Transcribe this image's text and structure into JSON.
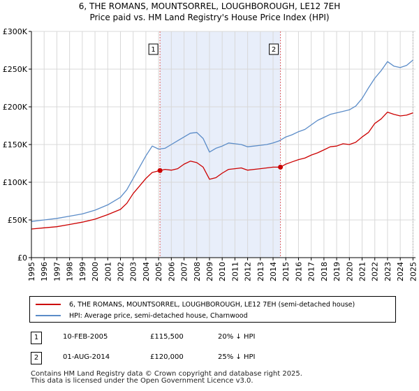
{
  "header": {
    "title_line1": "6, THE ROMANS, MOUNTSORREL, LOUGHBOROUGH, LE12 7EH",
    "title_line2": "Price paid vs. HM Land Registry's House Price Index (HPI)"
  },
  "chart_data": {
    "type": "line",
    "title": "6, THE ROMANS, MOUNTSORREL, LOUGHBOROUGH, LE12 7EH — Price paid vs. HM Land Registry's House Price Index (HPI)",
    "xlabel": "",
    "ylabel": "",
    "xlim": [
      1995,
      2025.2
    ],
    "ylim": [
      0,
      300000
    ],
    "x_ticks": [
      1995,
      1996,
      1997,
      1998,
      1999,
      2000,
      2001,
      2002,
      2003,
      2004,
      2005,
      2006,
      2007,
      2008,
      2009,
      2010,
      2011,
      2012,
      2013,
      2014,
      2015,
      2016,
      2017,
      2018,
      2019,
      2020,
      2021,
      2022,
      2023,
      2024,
      2025
    ],
    "y_ticks": [
      {
        "value": 0,
        "label": "£0"
      },
      {
        "value": 50000,
        "label": "£50K"
      },
      {
        "value": 100000,
        "label": "£100K"
      },
      {
        "value": 150000,
        "label": "£150K"
      },
      {
        "value": 200000,
        "label": "£200K"
      },
      {
        "value": 250000,
        "label": "£250K"
      },
      {
        "value": 300000,
        "label": "£300K"
      }
    ],
    "grid": true,
    "shaded_region": [
      2005.11,
      2014.58
    ],
    "series": [
      {
        "name": "6, THE ROMANS, MOUNTSORREL, LOUGHBOROUGH, LE12 7EH (semi-detached house)",
        "color": "#cc0000",
        "x": [
          1995,
          1996,
          1997,
          1998,
          1999,
          2000,
          2001,
          2002,
          2002.5,
          2003,
          2003.5,
          2004,
          2004.5,
          2005.11,
          2005.5,
          2006,
          2006.5,
          2007,
          2007.5,
          2008,
          2008.5,
          2009,
          2009.5,
          2010,
          2010.5,
          2011,
          2011.5,
          2012,
          2012.5,
          2013,
          2013.5,
          2014,
          2014.58,
          2015,
          2015.5,
          2016,
          2016.5,
          2017,
          2017.5,
          2018,
          2018.5,
          2019,
          2019.5,
          2020,
          2020.5,
          2021,
          2021.5,
          2022,
          2022.5,
          2023,
          2023.5,
          2024,
          2024.5,
          2025
        ],
        "y": [
          38000,
          39500,
          41000,
          44000,
          47000,
          51000,
          57000,
          64000,
          72000,
          85000,
          95000,
          105000,
          113000,
          115500,
          117000,
          116000,
          118000,
          124000,
          128000,
          126000,
          120000,
          104000,
          106000,
          112000,
          117000,
          118000,
          119000,
          116000,
          117000,
          118000,
          119000,
          120000,
          120000,
          124000,
          127000,
          130000,
          132000,
          136000,
          139000,
          143000,
          147000,
          148000,
          151000,
          150000,
          153000,
          160000,
          166000,
          178000,
          184000,
          193000,
          190000,
          188000,
          189000,
          192000
        ]
      },
      {
        "name": "HPI: Average price, semi-detached house, Charnwood",
        "color": "#5b8cc8",
        "x": [
          1995,
          1996,
          1997,
          1998,
          1999,
          2000,
          2001,
          2002,
          2002.5,
          2003,
          2003.5,
          2004,
          2004.5,
          2005,
          2005.5,
          2006,
          2006.5,
          2007,
          2007.5,
          2008,
          2008.5,
          2009,
          2009.5,
          2010,
          2010.5,
          2011,
          2011.5,
          2012,
          2012.5,
          2013,
          2013.5,
          2014,
          2014.5,
          2015,
          2015.5,
          2016,
          2016.5,
          2017,
          2017.5,
          2018,
          2018.5,
          2019,
          2019.5,
          2020,
          2020.5,
          2021,
          2021.5,
          2022,
          2022.5,
          2023,
          2023.5,
          2024,
          2024.5,
          2025
        ],
        "y": [
          48000,
          50000,
          52000,
          55000,
          58000,
          63000,
          70000,
          80000,
          90000,
          105000,
          120000,
          135000,
          148000,
          144000,
          145000,
          150000,
          155000,
          160000,
          165000,
          166000,
          158000,
          140000,
          145000,
          148000,
          152000,
          151000,
          150000,
          147000,
          148000,
          149000,
          150000,
          152000,
          155000,
          160000,
          163000,
          167000,
          170000,
          176000,
          182000,
          186000,
          190000,
          192000,
          194000,
          196000,
          201000,
          211000,
          225000,
          238000,
          248000,
          260000,
          254000,
          252000,
          255000,
          262000
        ]
      }
    ],
    "annotations": [
      {
        "label": "1",
        "x": 2005.11,
        "y": 115500
      },
      {
        "label": "2",
        "x": 2014.58,
        "y": 120000
      }
    ]
  },
  "legend": {
    "red_label": "6, THE ROMANS, MOUNTSORREL, LOUGHBOROUGH, LE12 7EH (semi-detached house)",
    "blue_label": "HPI: Average price, semi-detached house, Charnwood"
  },
  "transactions": [
    {
      "badge": "1",
      "date": "10-FEB-2005",
      "price": "£115,500",
      "hpi": "20% ↓ HPI"
    },
    {
      "badge": "2",
      "date": "01-AUG-2014",
      "price": "£120,000",
      "hpi": "25% ↓ HPI"
    }
  ],
  "footer": {
    "line1": "Contains HM Land Registry data © Crown copyright and database right 2025.",
    "line2": "This data is licensed under the Open Government Licence v3.0."
  },
  "colors": {
    "red": "#cc0000",
    "blue": "#5b8cc8",
    "shade": "#e8eefa",
    "grid": "#d8d8d8"
  }
}
